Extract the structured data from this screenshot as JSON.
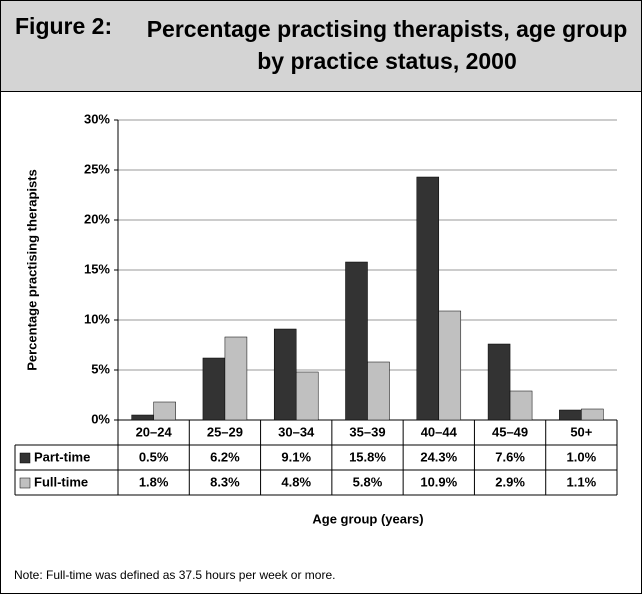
{
  "figure_label": "Figure 2:",
  "chart_data": {
    "type": "bar",
    "title": "Percentage practising therapists, age group by practice status, 2000",
    "y_label": "Percentage practising therapists",
    "x_label": "Age group (years)",
    "categories": [
      "20–24",
      "25–29",
      "30–34",
      "35–39",
      "40–44",
      "45–49",
      "50+"
    ],
    "series": [
      {
        "name": "Part-time",
        "color": "#333333",
        "values": [
          0.5,
          6.2,
          9.1,
          15.8,
          24.3,
          7.6,
          1.0
        ],
        "value_labels": [
          "0.5%",
          "6.2%",
          "9.1%",
          "15.8%",
          "24.3%",
          "7.6%",
          "1.0%"
        ]
      },
      {
        "name": "Full-time",
        "color": "#c0c0c0",
        "values": [
          1.8,
          8.3,
          4.8,
          5.8,
          10.9,
          2.9,
          1.1
        ],
        "value_labels": [
          "1.8%",
          "8.3%",
          "4.8%",
          "5.8%",
          "10.9%",
          "2.9%",
          "1.1%"
        ]
      }
    ],
    "ylim": [
      0,
      30
    ],
    "yticks": [
      {
        "value": 0,
        "label": "0%"
      },
      {
        "value": 5,
        "label": "5%"
      },
      {
        "value": 10,
        "label": "10%"
      },
      {
        "value": 15,
        "label": "15%"
      },
      {
        "value": 20,
        "label": "20%"
      },
      {
        "value": 25,
        "label": "25%"
      },
      {
        "value": 30,
        "label": "30%"
      }
    ],
    "grid": true
  },
  "note": "Note:  Full-time was defined as 37.5 hours per week or more."
}
